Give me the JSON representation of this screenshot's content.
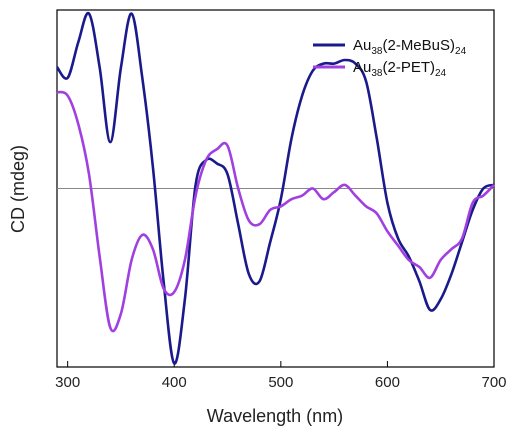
{
  "chart_data": {
    "type": "line",
    "xlabel": "Wavelength (nm)",
    "ylabel": "CD (mdeg)",
    "xlim": [
      290,
      700
    ],
    "ylim": [
      -1.0,
      1.0
    ],
    "xticks": [
      "300",
      "400",
      "500",
      "600",
      "700"
    ],
    "legend_position": "top-right",
    "zero_line": true,
    "grid": false,
    "series": [
      {
        "name_parts": [
          "Au",
          "38",
          "(2-MeBuS)",
          "24"
        ],
        "color": "#1a1a8c",
        "x": [
          290,
          300,
          310,
          320,
          330,
          340,
          350,
          360,
          370,
          380,
          390,
          400,
          410,
          420,
          430,
          440,
          450,
          460,
          470,
          480,
          490,
          500,
          510,
          520,
          530,
          540,
          550,
          560,
          570,
          580,
          590,
          600,
          610,
          620,
          630,
          640,
          650,
          660,
          670,
          680,
          690,
          700
        ],
        "y": [
          0.68,
          0.62,
          0.82,
          0.98,
          0.68,
          0.26,
          0.68,
          0.98,
          0.62,
          0.12,
          -0.52,
          -0.98,
          -0.62,
          0.02,
          0.16,
          0.14,
          0.08,
          -0.2,
          -0.48,
          -0.52,
          -0.3,
          -0.06,
          0.28,
          0.52,
          0.66,
          0.7,
          0.7,
          0.72,
          0.7,
          0.6,
          0.28,
          -0.08,
          -0.28,
          -0.38,
          -0.52,
          -0.68,
          -0.62,
          -0.48,
          -0.3,
          -0.12,
          0.0,
          0.02
        ]
      },
      {
        "name_parts": [
          "Au",
          "38",
          "(2-PET)",
          "24"
        ],
        "color": "#a040e0",
        "x": [
          290,
          300,
          310,
          320,
          330,
          340,
          350,
          360,
          370,
          380,
          390,
          400,
          410,
          420,
          430,
          440,
          450,
          460,
          470,
          480,
          490,
          500,
          510,
          520,
          530,
          540,
          550,
          560,
          570,
          580,
          590,
          600,
          610,
          620,
          630,
          640,
          650,
          660,
          670,
          680,
          690,
          700
        ],
        "y": [
          0.54,
          0.52,
          0.36,
          0.08,
          -0.38,
          -0.78,
          -0.7,
          -0.4,
          -0.26,
          -0.34,
          -0.56,
          -0.58,
          -0.4,
          -0.04,
          0.16,
          0.22,
          0.24,
          0.0,
          -0.18,
          -0.2,
          -0.12,
          -0.1,
          -0.06,
          -0.04,
          0.0,
          -0.06,
          -0.02,
          0.02,
          -0.04,
          -0.1,
          -0.14,
          -0.24,
          -0.32,
          -0.4,
          -0.44,
          -0.5,
          -0.4,
          -0.34,
          -0.28,
          -0.08,
          -0.04,
          0.02
        ]
      }
    ]
  }
}
